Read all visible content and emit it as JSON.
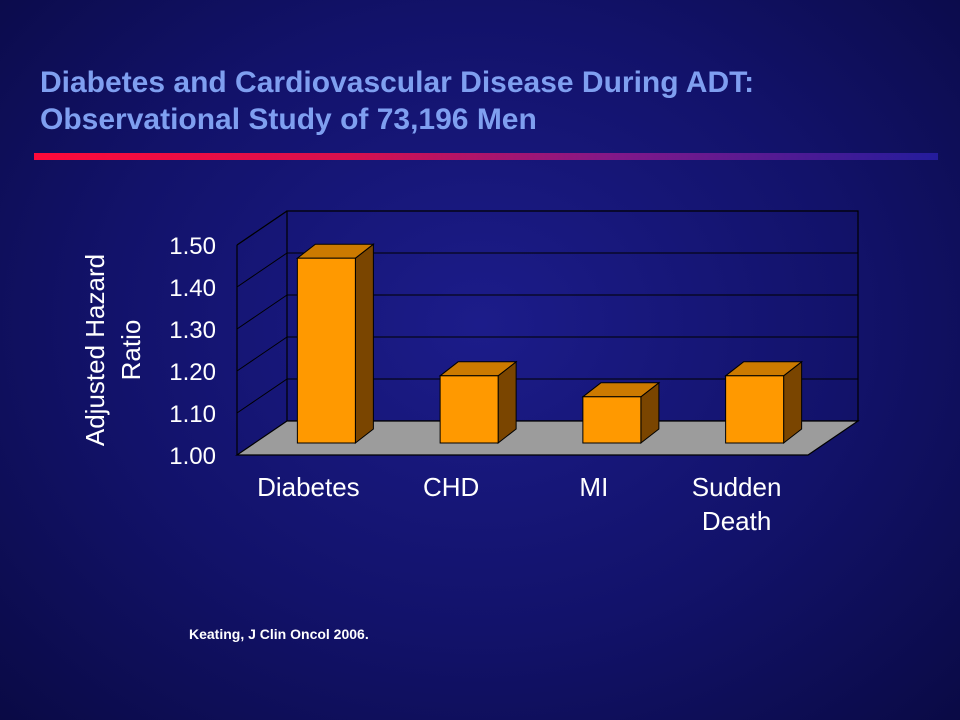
{
  "slide": {
    "title_line1": "Diabetes and Cardiovascular Disease During ADT:",
    "title_line2": "Observational Study of 73,196 Men",
    "citation": "Keating, J Clin Oncol  2006.",
    "rule_colors": [
      "#ff0a3a",
      "#241c9c"
    ]
  },
  "chart_data": {
    "type": "bar",
    "categories": [
      [
        "Diabetes"
      ],
      [
        "CHD"
      ],
      [
        "MI"
      ],
      [
        "Sudden",
        "Death"
      ]
    ],
    "values": [
      1.44,
      1.16,
      1.11,
      1.16
    ],
    "title": "",
    "xlabel": "",
    "ylabel": [
      "Adjusted Hazard",
      "Ratio"
    ],
    "ylim": [
      1.0,
      1.5
    ],
    "yticks": [
      "1.00",
      "1.10",
      "1.20",
      "1.30",
      "1.40",
      "1.50"
    ],
    "grid": true,
    "three_d": true,
    "colors": {
      "bar_front": "#ff9900",
      "bar_top": "#cc7a00",
      "bar_side": "#7a4500",
      "floor": "#9c9c9c",
      "axis_text": "#ffffff"
    }
  }
}
